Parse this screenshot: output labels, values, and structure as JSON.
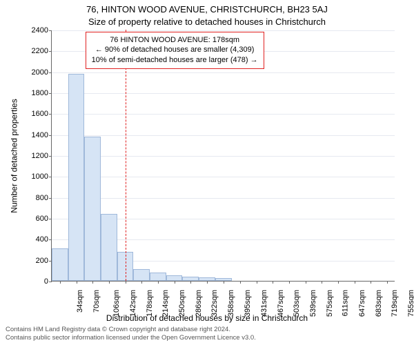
{
  "title_line1": "76, HINTON WOOD AVENUE, CHRISTCHURCH, BH23 5AJ",
  "title_line2": "Size of property relative to detached houses in Christchurch",
  "y_axis_title": "Number of detached properties",
  "x_axis_title": "Distribution of detached houses by size in Christchurch",
  "footer_line1": "Contains HM Land Registry data © Crown copyright and database right 2024.",
  "footer_line2": "Contains public sector information licensed under the Open Government Licence v3.0.",
  "chart": {
    "type": "histogram",
    "background_color": "#ffffff",
    "grid_color": "#e6e9f0",
    "axis_color": "#666666",
    "bar_fill": "#d6e4f5",
    "bar_border": "#9fb8da",
    "marker_color": "#e02020",
    "marker_x": 178,
    "x_min": 16,
    "x_max": 773,
    "bar_bin_width": 36,
    "y_min": 0,
    "y_max": 2400,
    "y_tick_step": 200,
    "y_ticks": [
      0,
      200,
      400,
      600,
      800,
      1000,
      1200,
      1400,
      1600,
      1800,
      2000,
      2200,
      2400
    ],
    "x_ticks": [
      34,
      70,
      106,
      142,
      178,
      214,
      250,
      286,
      322,
      358,
      395,
      431,
      467,
      503,
      539,
      575,
      611,
      647,
      683,
      719,
      755
    ],
    "x_tick_suffix": "sqm",
    "tick_fontsize": 11,
    "axis_title_fontsize": 12,
    "title_fontsize": 13,
    "bars": [
      {
        "x0": 16,
        "x1": 52,
        "value": 310
      },
      {
        "x0": 52,
        "x1": 88,
        "value": 1980
      },
      {
        "x0": 88,
        "x1": 124,
        "value": 1380
      },
      {
        "x0": 124,
        "x1": 160,
        "value": 640
      },
      {
        "x0": 160,
        "x1": 196,
        "value": 275
      },
      {
        "x0": 196,
        "x1": 232,
        "value": 110
      },
      {
        "x0": 232,
        "x1": 268,
        "value": 80
      },
      {
        "x0": 268,
        "x1": 304,
        "value": 55
      },
      {
        "x0": 304,
        "x1": 340,
        "value": 40
      },
      {
        "x0": 340,
        "x1": 376,
        "value": 30
      },
      {
        "x0": 376,
        "x1": 412,
        "value": 25
      }
    ],
    "info_box": {
      "lines": [
        "76 HINTON WOOD AVENUE: 178sqm",
        "← 90% of detached houses are smaller (4,309)",
        "10% of semi-detached houses are larger (478) →"
      ],
      "border_color": "#e02020",
      "fontsize": 11,
      "box_left_x": 90,
      "box_top_y": 2390
    }
  }
}
